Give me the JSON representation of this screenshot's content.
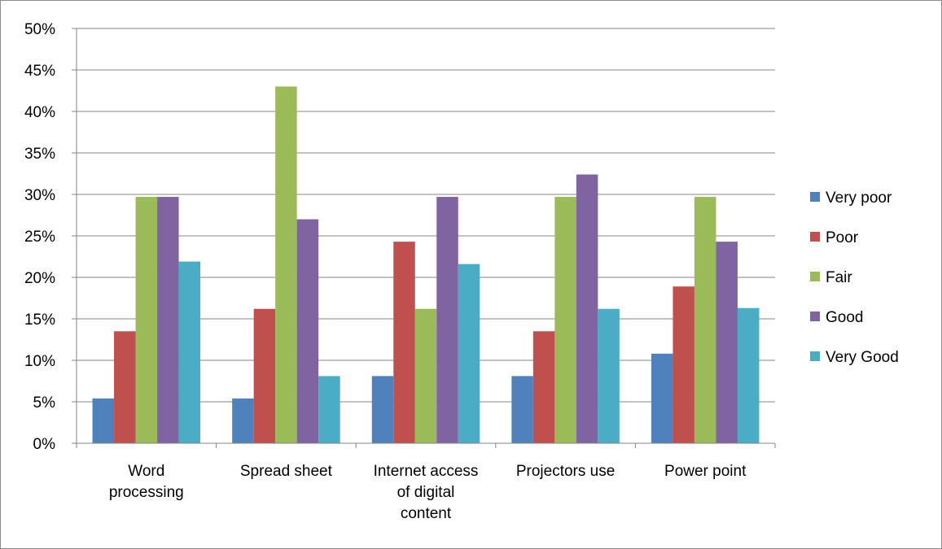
{
  "chart_data": {
    "type": "bar",
    "title": "",
    "xlabel": "",
    "ylabel": "",
    "ylim": [
      0,
      0.5
    ],
    "yticks": [
      0,
      0.05,
      0.1,
      0.15,
      0.2,
      0.25,
      0.3,
      0.35,
      0.4,
      0.45,
      0.5
    ],
    "ytick_labels": [
      "0%",
      "5%",
      "10%",
      "15%",
      "20%",
      "25%",
      "30%",
      "35%",
      "40%",
      "45%",
      "50%"
    ],
    "grid": true,
    "legend_position": "right",
    "categories": [
      [
        "Word",
        "processing"
      ],
      [
        "Spread sheet"
      ],
      [
        "Internet access",
        "of digital",
        "content"
      ],
      [
        "Projectors use"
      ],
      [
        "Power point"
      ]
    ],
    "series": [
      {
        "name": "Very poor",
        "color": "#4f81bd",
        "values": [
          0.054,
          0.054,
          0.081,
          0.081,
          0.108
        ]
      },
      {
        "name": "Poor",
        "color": "#c0504d",
        "values": [
          0.135,
          0.162,
          0.243,
          0.135,
          0.189
        ]
      },
      {
        "name": "Fair",
        "color": "#9bbb59",
        "values": [
          0.297,
          0.43,
          0.162,
          0.297,
          0.297
        ]
      },
      {
        "name": "Good",
        "color": "#8064a2",
        "values": [
          0.297,
          0.27,
          0.297,
          0.324,
          0.243
        ]
      },
      {
        "name": "Very Good",
        "color": "#4bacc6",
        "values": [
          0.219,
          0.081,
          0.216,
          0.162,
          0.163
        ]
      }
    ]
  }
}
